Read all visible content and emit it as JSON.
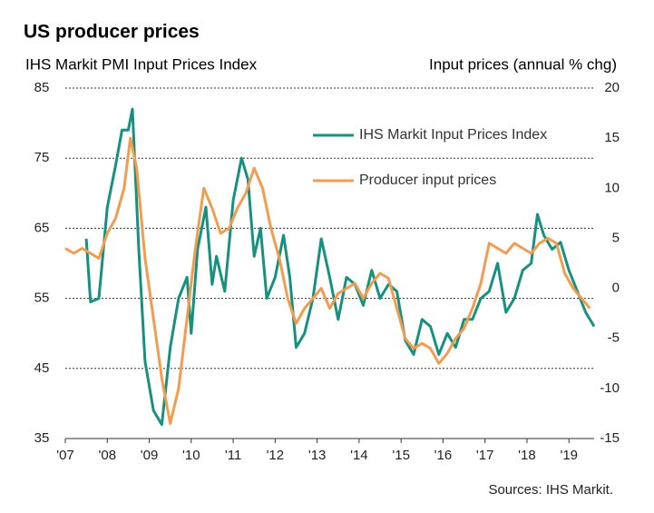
{
  "chart_data": {
    "type": "line",
    "title": "US producer prices",
    "y_label": "IHS Markit PMI Input Prices Index",
    "y2_label": "Input prices (annual % chg)",
    "source": "Sources: IHS Markit.",
    "xlim": [
      2007,
      2019.6
    ],
    "xticks": [
      {
        "value": 2007,
        "label": "'07"
      },
      {
        "value": 2008,
        "label": "'08"
      },
      {
        "value": 2009,
        "label": "'09"
      },
      {
        "value": 2010,
        "label": "'10"
      },
      {
        "value": 2011,
        "label": "'11"
      },
      {
        "value": 2012,
        "label": "'12"
      },
      {
        "value": 2013,
        "label": "'13"
      },
      {
        "value": 2014,
        "label": "'14"
      },
      {
        "value": 2015,
        "label": "'15"
      },
      {
        "value": 2016,
        "label": "'16"
      },
      {
        "value": 2017,
        "label": "'17"
      },
      {
        "value": 2018,
        "label": "'18"
      },
      {
        "value": 2019,
        "label": "'19"
      }
    ],
    "ylim": [
      35,
      85
    ],
    "yticks": [
      35,
      45,
      55,
      65,
      75,
      85
    ],
    "y2lim": [
      -15,
      20
    ],
    "y2ticks": [
      -15,
      -10,
      -5,
      0,
      5,
      10,
      15,
      20
    ],
    "grid": true,
    "series": [
      {
        "name": "IHS Markit Input Prices Index",
        "color": "#17917f",
        "axis": "y",
        "x": [
          2007.5,
          2007.6,
          2007.8,
          2008.0,
          2008.2,
          2008.35,
          2008.5,
          2008.6,
          2008.75,
          2008.9,
          2009.1,
          2009.3,
          2009.5,
          2009.7,
          2009.9,
          2010.0,
          2010.15,
          2010.35,
          2010.5,
          2010.6,
          2010.8,
          2011.0,
          2011.2,
          2011.35,
          2011.5,
          2011.65,
          2011.8,
          2012.0,
          2012.2,
          2012.35,
          2012.5,
          2012.7,
          2012.9,
          2013.1,
          2013.3,
          2013.5,
          2013.7,
          2013.9,
          2014.1,
          2014.3,
          2014.5,
          2014.7,
          2014.9,
          2015.1,
          2015.3,
          2015.5,
          2015.7,
          2015.9,
          2016.1,
          2016.3,
          2016.5,
          2016.7,
          2016.9,
          2017.1,
          2017.3,
          2017.5,
          2017.7,
          2017.9,
          2018.1,
          2018.25,
          2018.4,
          2018.6,
          2018.8,
          2019.0,
          2019.2,
          2019.4,
          2019.6
        ],
        "values": [
          63.5,
          54.5,
          55,
          68,
          74,
          79,
          79,
          82,
          62,
          46,
          39,
          37,
          48,
          55,
          58,
          50,
          62,
          68,
          57,
          61,
          56,
          69,
          75,
          72,
          61,
          65,
          55,
          58,
          64,
          58,
          48,
          50,
          55,
          63.5,
          58,
          52,
          58,
          57,
          54,
          59,
          55,
          57,
          56,
          49,
          47,
          52,
          51,
          47,
          50,
          48,
          52,
          52,
          55,
          56,
          60,
          53,
          55,
          59,
          60,
          67,
          64,
          62,
          63,
          59,
          56,
          53,
          51
        ]
      },
      {
        "name": "Producer input prices",
        "color": "#f39c4f",
        "axis": "y2",
        "x": [
          2007.0,
          2007.2,
          2007.4,
          2007.6,
          2007.8,
          2008.0,
          2008.2,
          2008.4,
          2008.55,
          2008.7,
          2008.9,
          2009.1,
          2009.3,
          2009.5,
          2009.7,
          2009.9,
          2010.1,
          2010.3,
          2010.5,
          2010.7,
          2010.9,
          2011.1,
          2011.3,
          2011.5,
          2011.7,
          2011.9,
          2012.1,
          2012.3,
          2012.5,
          2012.7,
          2012.9,
          2013.1,
          2013.3,
          2013.5,
          2013.7,
          2013.9,
          2014.1,
          2014.3,
          2014.5,
          2014.7,
          2014.9,
          2015.1,
          2015.3,
          2015.5,
          2015.7,
          2015.9,
          2016.1,
          2016.3,
          2016.5,
          2016.7,
          2016.9,
          2017.1,
          2017.3,
          2017.5,
          2017.7,
          2017.9,
          2018.1,
          2018.3,
          2018.5,
          2018.7,
          2018.9,
          2019.1,
          2019.3,
          2019.5
        ],
        "values": [
          4,
          3.5,
          4,
          3.5,
          3,
          5.5,
          7,
          10,
          15,
          12,
          3,
          -3,
          -9,
          -13.5,
          -10,
          -3,
          4,
          10,
          8,
          5.5,
          6,
          8,
          9.5,
          12,
          10,
          6,
          3,
          -1,
          -3.5,
          -2,
          -1,
          0,
          -2,
          -0.5,
          0,
          0.5,
          -1,
          0.5,
          1.5,
          1,
          -2,
          -5,
          -6,
          -5.5,
          -6,
          -7.5,
          -6.5,
          -5,
          -4,
          -2,
          0.5,
          4.5,
          4,
          3.5,
          4.5,
          4,
          3.5,
          4.5,
          5,
          4.5,
          1.5,
          0,
          -1,
          -2
        ]
      }
    ]
  }
}
